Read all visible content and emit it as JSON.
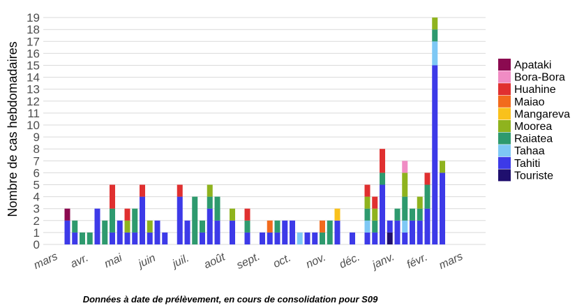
{
  "chart_data": {
    "type": "bar",
    "stacked": true,
    "ylabel": "Nombre de cas hebdomadaires",
    "xlabel": "",
    "caption": "Données à date de prélèvement, en cours de consolidation pour S09",
    "ylim": [
      0,
      19
    ],
    "y_ticks": [
      0,
      1,
      2,
      3,
      4,
      5,
      6,
      7,
      8,
      9,
      10,
      11,
      12,
      13,
      14,
      15,
      16,
      17,
      18,
      19
    ],
    "grid": true,
    "legend_position": "right",
    "x_tick_labels": [
      "mars",
      "avr.",
      "mai",
      "juin",
      "juil.",
      "août",
      "sept.",
      "oct.",
      "nov.",
      "déc.",
      "janv.",
      "févr.",
      "mars"
    ],
    "legend": [
      {
        "name": "Apataki",
        "color": "#8b0a50"
      },
      {
        "name": "Bora-Bora",
        "color": "#f08cc4"
      },
      {
        "name": "Huahine",
        "color": "#e03030"
      },
      {
        "name": "Maiao",
        "color": "#f26b1d"
      },
      {
        "name": "Mangareva",
        "color": "#f9c11c"
      },
      {
        "name": "Moorea",
        "color": "#8fb31e"
      },
      {
        "name": "Raiatea",
        "color": "#2e9a6e"
      },
      {
        "name": "Tahaa",
        "color": "#7ec8f5"
      },
      {
        "name": "Tahiti",
        "color": "#3d3ae8"
      },
      {
        "name": "Touriste",
        "color": "#1f0f6e"
      }
    ],
    "weeks": [
      {
        "week": 1,
        "stack": {
          "Tahiti": 2,
          "Apataki": 1
        }
      },
      {
        "week": 2,
        "stack": {
          "Tahiti": 1,
          "Raiatea": 1
        }
      },
      {
        "week": 3,
        "stack": {
          "Raiatea": 1
        }
      },
      {
        "week": 4,
        "stack": {
          "Raiatea": 1
        }
      },
      {
        "week": 5,
        "stack": {
          "Tahiti": 3
        }
      },
      {
        "week": 6,
        "stack": {
          "Raiatea": 2
        }
      },
      {
        "week": 7,
        "stack": {
          "Tahiti": 1,
          "Raiatea": 2,
          "Huahine": 2
        }
      },
      {
        "week": 8,
        "stack": {
          "Tahiti": 2
        }
      },
      {
        "week": 9,
        "stack": {
          "Tahiti": 1,
          "Moorea": 1,
          "Huahine": 1
        }
      },
      {
        "week": 10,
        "stack": {
          "Tahiti": 1,
          "Raiatea": 2
        }
      },
      {
        "week": 11,
        "stack": {
          "Tahiti": 4,
          "Huahine": 1
        }
      },
      {
        "week": 12,
        "stack": {
          "Tahiti": 1,
          "Moorea": 1
        }
      },
      {
        "week": 13,
        "stack": {
          "Tahiti": 2
        }
      },
      {
        "week": 14,
        "stack": {
          "Tahiti": 1
        }
      },
      {
        "week": 16,
        "stack": {
          "Tahiti": 4,
          "Huahine": 1
        }
      },
      {
        "week": 17,
        "stack": {
          "Tahiti": 2
        }
      },
      {
        "week": 18,
        "stack": {
          "Raiatea": 4
        }
      },
      {
        "week": 19,
        "stack": {
          "Tahiti": 1,
          "Raiatea": 1
        }
      },
      {
        "week": 20,
        "stack": {
          "Tahiti": 3,
          "Raiatea": 1,
          "Moorea": 1
        }
      },
      {
        "week": 21,
        "stack": {
          "Tahiti": 2,
          "Raiatea": 2
        }
      },
      {
        "week": 23,
        "stack": {
          "Tahiti": 2,
          "Moorea": 1
        }
      },
      {
        "week": 25,
        "stack": {
          "Tahiti": 1,
          "Raiatea": 1,
          "Huahine": 1
        }
      },
      {
        "week": 27,
        "stack": {
          "Tahiti": 1
        }
      },
      {
        "week": 28,
        "stack": {
          "Tahiti": 1,
          "Maiao": 1
        }
      },
      {
        "week": 29,
        "stack": {
          "Tahiti": 1,
          "Raiatea": 1
        }
      },
      {
        "week": 30,
        "stack": {
          "Tahiti": 2
        }
      },
      {
        "week": 31,
        "stack": {
          "Tahiti": 2
        }
      },
      {
        "week": 32,
        "stack": {
          "Tahaa": 1
        }
      },
      {
        "week": 33,
        "stack": {
          "Tahiti": 1
        }
      },
      {
        "week": 34,
        "stack": {
          "Tahiti": 1
        }
      },
      {
        "week": 35,
        "stack": {
          "Raiatea": 1,
          "Maiao": 1
        }
      },
      {
        "week": 36,
        "stack": {
          "Raiatea": 2
        }
      },
      {
        "week": 37,
        "stack": {
          "Tahiti": 2,
          "Mangareva": 1
        }
      },
      {
        "week": 39,
        "stack": {
          "Tahiti": 1
        }
      },
      {
        "week": 41,
        "stack": {
          "Tahiti": 1,
          "Tahaa": 1,
          "Raiatea": 1,
          "Moorea": 1,
          "Huahine": 1
        }
      },
      {
        "week": 42,
        "stack": {
          "Tahiti": 1,
          "Raiatea": 1,
          "Moorea": 1,
          "Huahine": 1
        }
      },
      {
        "week": 43,
        "stack": {
          "Tahiti": 5,
          "Raiatea": 1,
          "Huahine": 2
        }
      },
      {
        "week": 44,
        "stack": {
          "Touriste": 1,
          "Tahiti": 1
        }
      },
      {
        "week": 45,
        "stack": {
          "Tahiti": 2,
          "Raiatea": 1
        }
      },
      {
        "week": 46,
        "stack": {
          "Tahiti": 1,
          "Tahaa": 1,
          "Raiatea": 2,
          "Moorea": 2,
          "Bora-Bora": 1
        }
      },
      {
        "week": 47,
        "stack": {
          "Tahiti": 2,
          "Raiatea": 1
        }
      },
      {
        "week": 48,
        "stack": {
          "Tahiti": 2,
          "Raiatea": 1,
          "Moorea": 1
        }
      },
      {
        "week": 49,
        "stack": {
          "Tahiti": 3,
          "Raiatea": 2,
          "Huahine": 1
        }
      },
      {
        "week": 50,
        "stack": {
          "Tahiti": 15,
          "Tahaa": 2,
          "Raiatea": 1,
          "Moorea": 1
        }
      },
      {
        "week": 51,
        "stack": {
          "Tahiti": 6,
          "Moorea": 1
        }
      }
    ]
  }
}
